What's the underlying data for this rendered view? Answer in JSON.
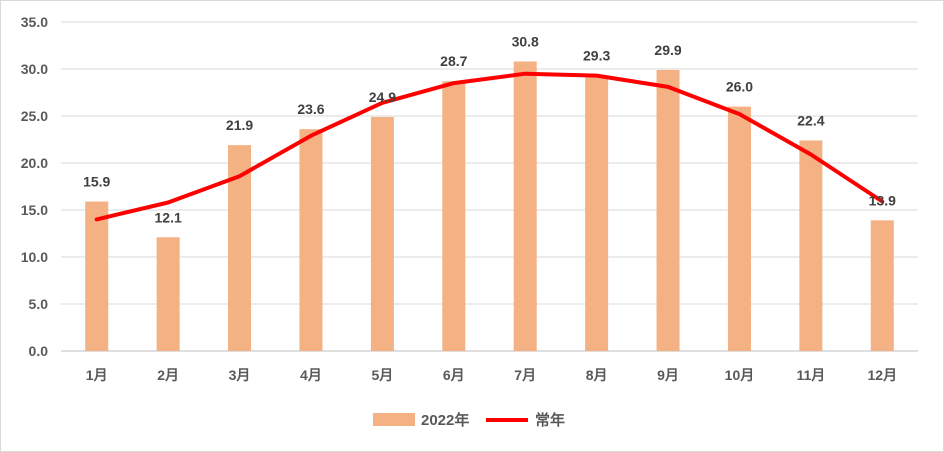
{
  "chart_data": {
    "type": "bar",
    "categories": [
      "1月",
      "2月",
      "3月",
      "4月",
      "5月",
      "6月",
      "7月",
      "8月",
      "9月",
      "10月",
      "11月",
      "12月"
    ],
    "series": [
      {
        "name": "2022年",
        "type": "bar",
        "values": [
          15.9,
          12.1,
          21.9,
          23.6,
          24.9,
          28.7,
          30.8,
          29.3,
          29.9,
          26.0,
          22.4,
          13.9
        ],
        "labels": [
          "15.9",
          "12.1",
          "21.9",
          "23.6",
          "24.9",
          "28.7",
          "30.8",
          "29.3",
          "29.9",
          "26.0",
          "22.4",
          "13.9"
        ],
        "color": "#f4b183"
      },
      {
        "name": "常年",
        "type": "line",
        "values": [
          14.0,
          15.8,
          18.6,
          22.9,
          26.4,
          28.5,
          29.5,
          29.3,
          28.1,
          25.2,
          20.9,
          15.9
        ],
        "color": "#ff0000"
      }
    ],
    "ylim": [
      0,
      35
    ],
    "yticks": [
      "0.0",
      "5.0",
      "10.0",
      "15.0",
      "20.0",
      "25.0",
      "30.0",
      "35.0"
    ],
    "grid": true,
    "legend_position": "bottom"
  }
}
